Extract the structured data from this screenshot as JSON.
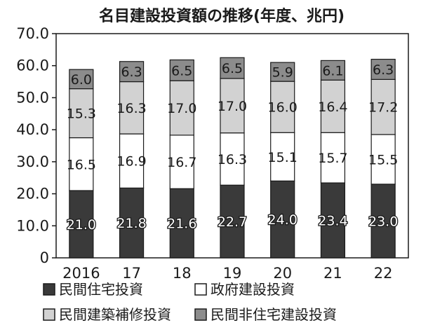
{
  "chart_data": {
    "type": "bar",
    "stacked": true,
    "title": "名目建設投資額の推移(年度、兆円)",
    "categories": [
      "2016",
      "17",
      "18",
      "19",
      "20",
      "21",
      "22"
    ],
    "y_ticks": [
      "70.0",
      "60.0",
      "50.0",
      "40.0",
      "30.0",
      "20.0",
      "10.0",
      "0"
    ],
    "ylim": [
      0,
      70
    ],
    "series": [
      {
        "name": "民間住宅投資",
        "color": "#3a3a3a",
        "values": [
          21.0,
          21.8,
          21.6,
          22.7,
          24.0,
          23.4,
          23.0
        ]
      },
      {
        "name": "政府建設投資",
        "color": "#ffffff",
        "values": [
          16.5,
          16.9,
          16.7,
          16.3,
          15.1,
          15.7,
          15.5
        ]
      },
      {
        "name": "民間建築補修投資",
        "color": "#d2d2d2",
        "values": [
          15.3,
          16.3,
          17.0,
          17.0,
          16.0,
          16.4,
          17.2
        ]
      },
      {
        "name": "民間非住宅建設投資",
        "color": "#8c8c8c",
        "values": [
          6.0,
          6.3,
          6.5,
          6.5,
          5.9,
          6.1,
          6.3
        ]
      }
    ],
    "value_labels": [
      [
        "21.0",
        "21.8",
        "21.6",
        "22.7",
        "24.0",
        "23.4",
        "23.0"
      ],
      [
        "16.5",
        "16.9",
        "16.7",
        "16.3",
        "15.1",
        "15.7",
        "15.5"
      ],
      [
        "15.3",
        "16.3",
        "17.0",
        "17.0",
        "16.0",
        "16.4",
        "17.2"
      ],
      [
        "6.0",
        "6.3",
        "6.5",
        "6.5",
        "5.9",
        "6.1",
        "6.3"
      ]
    ],
    "legend_position": "bottom",
    "grid": false
  }
}
